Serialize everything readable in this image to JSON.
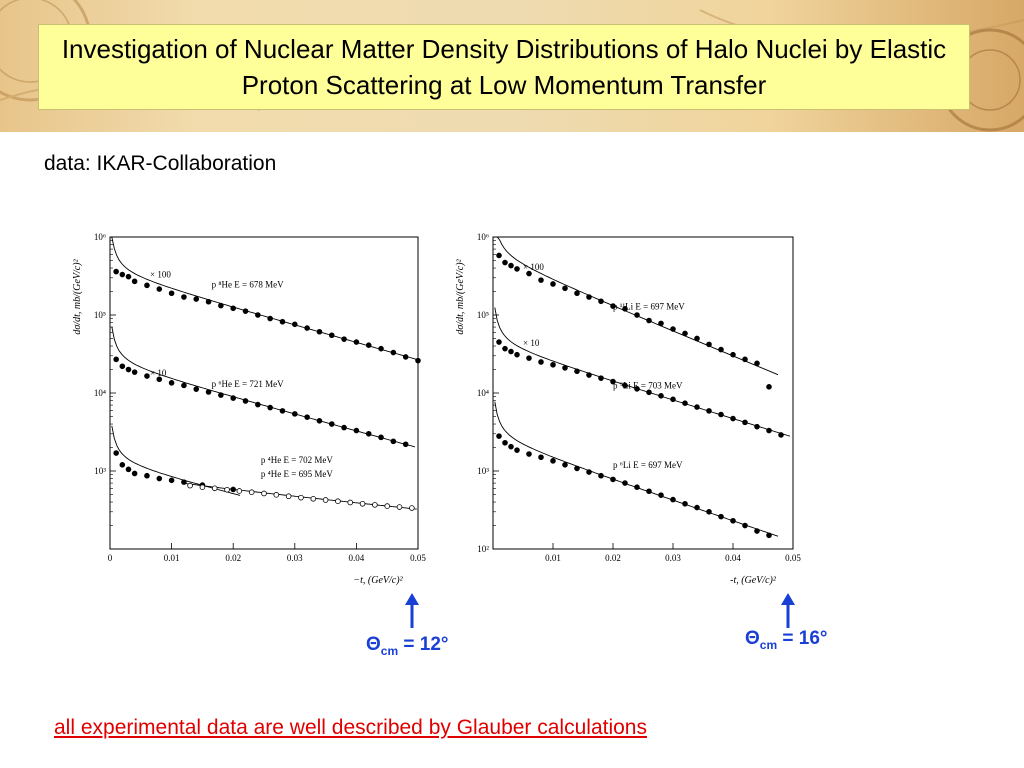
{
  "slide": {
    "title": "Investigation of Nuclear Matter Density Distributions of Halo Nuclei by Elastic Proton Scattering at Low Momentum Transfer",
    "subtitle": "data: IKAR-Collaboration",
    "conclusion": "all experimental data are well described by Glauber calculations",
    "accent_color": "#1a3fd6",
    "conclusion_color": "#e00000"
  },
  "annotations": [
    {
      "symbol": "Θ",
      "sub": "cm",
      "value": " = 12°"
    },
    {
      "symbol": "Θ",
      "sub": "cm",
      "value": " = 16°"
    }
  ],
  "chart_data": [
    {
      "type": "scatter",
      "ylabel": "dσ/dt,  mb/(GeV/c)²",
      "xlabel": "−t,  (GeV/c)²",
      "xlim": [
        0,
        0.05
      ],
      "ylim_log10": [
        2,
        6
      ],
      "y_scale": "log",
      "x_ticks": [
        "0",
        "0.01",
        "0.02",
        "0.03",
        "0.04",
        "0.05"
      ],
      "y_ticks": [
        "10⁶",
        "10⁵",
        "10⁴",
        "10³"
      ],
      "series": [
        {
          "name": "p ⁸He  E = 678 MeV",
          "scale_label": "× 100",
          "marker": "filled",
          "x": [
            0.001,
            0.002,
            0.003,
            0.004,
            0.006,
            0.008,
            0.01,
            0.012,
            0.014,
            0.016,
            0.018,
            0.02,
            0.022,
            0.024,
            0.026,
            0.028,
            0.03,
            0.032,
            0.034,
            0.036,
            0.038,
            0.04,
            0.042,
            0.044,
            0.046,
            0.048,
            0.05
          ],
          "y": [
            360000,
            330000,
            310000,
            270000,
            240000,
            215000,
            190000,
            170000,
            160000,
            148000,
            132000,
            122000,
            112000,
            100000,
            90000,
            82000,
            76000,
            68000,
            61000,
            55000,
            49000,
            45000,
            41000,
            37000,
            33000,
            29000,
            26000
          ]
        },
        {
          "name": "p ⁶He  E = 721 MeV",
          "scale_label": "× 10",
          "marker": "filled",
          "x": [
            0.001,
            0.002,
            0.003,
            0.004,
            0.006,
            0.008,
            0.01,
            0.012,
            0.014,
            0.016,
            0.018,
            0.02,
            0.022,
            0.024,
            0.026,
            0.028,
            0.03,
            0.032,
            0.034,
            0.036,
            0.038,
            0.04,
            0.042,
            0.044,
            0.046,
            0.048
          ],
          "y": [
            27000,
            22000,
            20000,
            18500,
            16500,
            15000,
            13500,
            12500,
            11200,
            10300,
            9400,
            8600,
            7900,
            7100,
            6500,
            5900,
            5400,
            4900,
            4400,
            4000,
            3600,
            3300,
            3000,
            2700,
            2400,
            2200
          ]
        },
        {
          "name": "p ⁴He  E = 702 MeV",
          "marker": "filled",
          "x": [
            0.001,
            0.002,
            0.003,
            0.004,
            0.006,
            0.008,
            0.01,
            0.012,
            0.015,
            0.02
          ],
          "y": [
            1700,
            1200,
            1050,
            930,
            870,
            800,
            760,
            720,
            660,
            580
          ]
        },
        {
          "name": "p ⁴He  E = 695 MeV",
          "marker": "open",
          "x": [
            0.013,
            0.015,
            0.017,
            0.019,
            0.021,
            0.023,
            0.025,
            0.027,
            0.029,
            0.031,
            0.033,
            0.035,
            0.037,
            0.039,
            0.041,
            0.043,
            0.045,
            0.047,
            0.049
          ],
          "y": [
            650,
            620,
            600,
            575,
            555,
            535,
            515,
            495,
            475,
            455,
            440,
            425,
            410,
            395,
            380,
            368,
            355,
            345,
            335
          ]
        }
      ]
    },
    {
      "type": "scatter",
      "ylabel": "dσ/dt,  mb/(GeV/c)²",
      "xlabel": "-t,  (GeV/c)²",
      "xlim": [
        0,
        0.05
      ],
      "ylim_log10": [
        2,
        6
      ],
      "y_scale": "log",
      "x_ticks": [
        "0.01",
        "0.02",
        "0.03",
        "0.04",
        "0.05"
      ],
      "y_ticks": [
        "10⁶",
        "10⁵",
        "10⁴",
        "10³",
        "10²"
      ],
      "series": [
        {
          "name": "p ¹¹Li  E = 697 MeV",
          "scale_label": "× 100",
          "marker": "filled",
          "x": [
            0.001,
            0.002,
            0.003,
            0.004,
            0.006,
            0.008,
            0.01,
            0.012,
            0.014,
            0.016,
            0.018,
            0.02,
            0.022,
            0.024,
            0.026,
            0.028,
            0.03,
            0.032,
            0.034,
            0.036,
            0.038,
            0.04,
            0.042,
            0.044,
            0.046
          ],
          "y": [
            580000,
            470000,
            430000,
            390000,
            340000,
            280000,
            250000,
            220000,
            190000,
            170000,
            150000,
            130000,
            120000,
            100000,
            85000,
            78000,
            66000,
            58000,
            50000,
            42000,
            36000,
            31000,
            27000,
            24000,
            12000
          ]
        },
        {
          "name": "p ⁹Li  E = 703 MeV",
          "scale_label": "× 10",
          "marker": "filled",
          "x": [
            0.001,
            0.002,
            0.003,
            0.004,
            0.006,
            0.008,
            0.01,
            0.012,
            0.014,
            0.016,
            0.018,
            0.02,
            0.022,
            0.024,
            0.026,
            0.028,
            0.03,
            0.032,
            0.034,
            0.036,
            0.038,
            0.04,
            0.042,
            0.044,
            0.046,
            0.048
          ],
          "y": [
            45000,
            37000,
            34000,
            31000,
            28000,
            25000,
            23000,
            21000,
            19000,
            17000,
            15500,
            14000,
            12500,
            11300,
            10200,
            9200,
            8300,
            7400,
            6600,
            5900,
            5300,
            4700,
            4200,
            3700,
            3300,
            2900
          ]
        },
        {
          "name": "p ⁶Li  E = 697 MeV",
          "marker": "filled",
          "x": [
            0.001,
            0.002,
            0.003,
            0.004,
            0.006,
            0.008,
            0.01,
            0.012,
            0.014,
            0.016,
            0.018,
            0.02,
            0.022,
            0.024,
            0.026,
            0.028,
            0.03,
            0.032,
            0.034,
            0.036,
            0.038,
            0.04,
            0.042,
            0.044,
            0.046
          ],
          "y": [
            2800,
            2300,
            2050,
            1850,
            1650,
            1500,
            1350,
            1200,
            1080,
            970,
            870,
            780,
            700,
            620,
            550,
            490,
            430,
            380,
            340,
            300,
            260,
            230,
            200,
            170,
            150
          ]
        }
      ]
    }
  ]
}
